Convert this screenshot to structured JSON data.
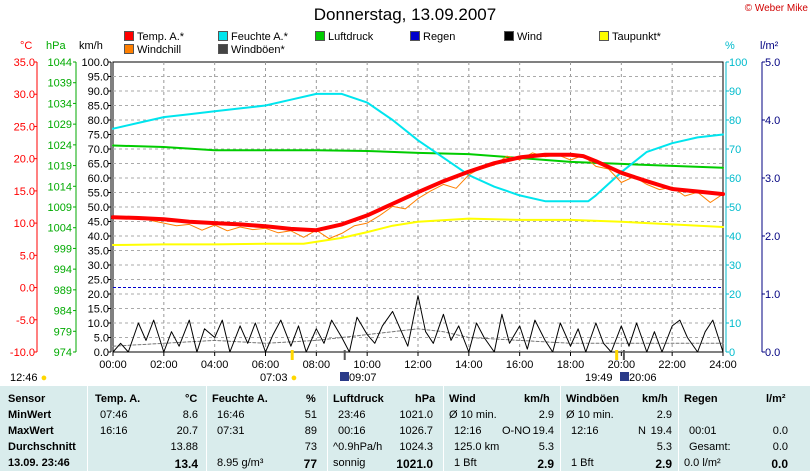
{
  "title": "Donnerstag, 13.09.2007",
  "copyright": "© Weber Mike",
  "legend": [
    {
      "label": "Temp. A.*",
      "color": "#ff0000"
    },
    {
      "label": "Feuchte A.*",
      "color": "#00e5ee"
    },
    {
      "label": "Luftdruck",
      "color": "#00cc00"
    },
    {
      "label": "Regen",
      "color": "#0000cc"
    },
    {
      "label": "Wind",
      "color": "#000000"
    },
    {
      "label": "Taupunkt*",
      "color": "#ffff00"
    },
    {
      "label": "Windchill",
      "color": "#ff7f00"
    },
    {
      "label": "Windböen*",
      "color": "#444444"
    }
  ],
  "axis_heads": {
    "temp": "°C",
    "press": "hPa",
    "wind": "km/h",
    "hum": "%",
    "rain": "l/m²"
  },
  "chart_data": {
    "type": "line",
    "x_ticks": [
      "00:00",
      "02:00",
      "04:00",
      "06:00",
      "08:00",
      "10:00",
      "12:00",
      "14:00",
      "16:00",
      "18:00",
      "20:00",
      "22:00",
      "24:00"
    ],
    "axes": {
      "temp": {
        "min": -10,
        "max": 35,
        "ticks": [
          "35.0",
          "30.0",
          "25.0",
          "20.0",
          "15.0",
          "10.0",
          "5.0",
          "0.0",
          "-5.0",
          "-10.0"
        ],
        "color": "#ff0000"
      },
      "press": {
        "min": 974,
        "max": 1048,
        "ticks": [
          "1044",
          "1039",
          "1034",
          "1029",
          "1024",
          "1019",
          "1014",
          "1009",
          "1004",
          "999",
          "994",
          "989",
          "984",
          "979",
          "974"
        ],
        "color": "#00aa00"
      },
      "wind": {
        "min": 0,
        "max": 100,
        "ticks": [
          "100.0",
          "95.0",
          "90.0",
          "85.0",
          "80.0",
          "75.0",
          "70.0",
          "65.0",
          "60.0",
          "55.0",
          "50.0",
          "45.0",
          "40.0",
          "35.0",
          "30.0",
          "25.0",
          "20.0",
          "15.0",
          "10.0",
          "5.0",
          "0.0"
        ],
        "color": "#000000"
      },
      "hum": {
        "min": 0,
        "max": 100,
        "ticks": [
          "100",
          "90",
          "80",
          "70",
          "60",
          "50",
          "40",
          "30",
          "20",
          "10",
          "0"
        ],
        "color": "#00bbcc"
      },
      "rain": {
        "min": 0,
        "max": 5,
        "ticks": [
          "5.0",
          "4.0",
          "3.0",
          "2.0",
          "1.0",
          "0.0"
        ],
        "color": "#000080"
      }
    },
    "series": [
      {
        "name": "Temp. A.*",
        "axis": "temp",
        "color": "#ff0000",
        "width": 4,
        "points": [
          [
            0,
            10.9
          ],
          [
            1,
            10.8
          ],
          [
            2,
            10.6
          ],
          [
            3,
            10.2
          ],
          [
            4,
            10.0
          ],
          [
            5,
            9.8
          ],
          [
            6,
            9.5
          ],
          [
            7,
            9.1
          ],
          [
            8,
            8.9
          ],
          [
            9,
            9.8
          ],
          [
            10,
            11.2
          ],
          [
            11,
            13.0
          ],
          [
            12,
            14.8
          ],
          [
            13,
            16.5
          ],
          [
            14,
            18.0
          ],
          [
            15,
            19.3
          ],
          [
            16,
            20.2
          ],
          [
            17,
            20.6
          ],
          [
            18,
            20.6
          ],
          [
            18.5,
            20.4
          ],
          [
            19,
            19.6
          ],
          [
            20,
            17.8
          ],
          [
            21,
            16.5
          ],
          [
            22,
            15.3
          ],
          [
            23,
            14.9
          ],
          [
            24,
            14.5
          ]
        ]
      },
      {
        "name": "Feuchte A.*",
        "axis": "hum",
        "color": "#00e5ee",
        "width": 2,
        "points": [
          [
            0,
            77
          ],
          [
            1,
            79
          ],
          [
            2,
            81
          ],
          [
            3,
            82
          ],
          [
            4,
            83
          ],
          [
            5,
            84
          ],
          [
            6,
            85
          ],
          [
            7,
            87
          ],
          [
            8,
            89
          ],
          [
            9,
            89
          ],
          [
            10,
            86
          ],
          [
            11,
            80
          ],
          [
            12,
            73
          ],
          [
            13,
            67
          ],
          [
            14,
            61
          ],
          [
            15,
            57
          ],
          [
            16,
            54
          ],
          [
            17,
            52
          ],
          [
            18,
            52
          ],
          [
            18.7,
            52
          ],
          [
            19,
            54
          ],
          [
            20,
            62
          ],
          [
            21,
            69
          ],
          [
            22,
            72
          ],
          [
            23,
            74
          ],
          [
            24,
            75
          ]
        ]
      },
      {
        "name": "Luftdruck",
        "axis": "press",
        "color": "#00cc00",
        "width": 2,
        "points": [
          [
            0,
            1026.7
          ],
          [
            2,
            1026.3
          ],
          [
            4,
            1025.5
          ],
          [
            6,
            1025.5
          ],
          [
            8,
            1025.5
          ],
          [
            10,
            1025.3
          ],
          [
            12,
            1024.8
          ],
          [
            14,
            1024.5
          ],
          [
            16,
            1023.5
          ],
          [
            18,
            1022.5
          ],
          [
            20,
            1022.0
          ],
          [
            22,
            1021.5
          ],
          [
            24,
            1021.0
          ]
        ]
      },
      {
        "name": "Taupunkt*",
        "axis": "temp",
        "color": "#ffff00",
        "width": 2,
        "points": [
          [
            0,
            6.6
          ],
          [
            2,
            6.7
          ],
          [
            4,
            6.7
          ],
          [
            6,
            6.8
          ],
          [
            7.5,
            6.8
          ],
          [
            9,
            7.7
          ],
          [
            10,
            8.6
          ],
          [
            11,
            9.6
          ],
          [
            12,
            10.2
          ],
          [
            14,
            10.7
          ],
          [
            16,
            10.5
          ],
          [
            18,
            10.5
          ],
          [
            20,
            10.2
          ],
          [
            22,
            9.8
          ],
          [
            24,
            9.4
          ]
        ]
      },
      {
        "name": "Windchill",
        "axis": "temp",
        "color": "#ff7f00",
        "width": 1,
        "points": [
          [
            0,
            10.8
          ],
          [
            0.5,
            10.9
          ],
          [
            1,
            10.8
          ],
          [
            1.5,
            10.4
          ],
          [
            2,
            10.0
          ],
          [
            2.5,
            9.6
          ],
          [
            3,
            9.8
          ],
          [
            3.5,
            8.9
          ],
          [
            4,
            9.7
          ],
          [
            4.5,
            8.8
          ],
          [
            5,
            9.4
          ],
          [
            5.5,
            9.0
          ],
          [
            6,
            9.2
          ],
          [
            6.5,
            8.5
          ],
          [
            7,
            8.8
          ],
          [
            7.5,
            7.8
          ],
          [
            8,
            8.9
          ],
          [
            8.5,
            7.6
          ],
          [
            9,
            8.4
          ],
          [
            9.5,
            9.6
          ],
          [
            10,
            10.0
          ],
          [
            10.5,
            11.2
          ],
          [
            11,
            12.6
          ],
          [
            11.5,
            12.2
          ],
          [
            12,
            13.8
          ],
          [
            12.5,
            15.0
          ],
          [
            13,
            16.0
          ],
          [
            13.5,
            15.4
          ],
          [
            14,
            17.5
          ],
          [
            14.5,
            18.6
          ],
          [
            15,
            19.0
          ],
          [
            15.5,
            20.4
          ],
          [
            16,
            19.8
          ],
          [
            16.5,
            20.9
          ],
          [
            17,
            20.3
          ],
          [
            17.5,
            20.6
          ],
          [
            18,
            19.8
          ],
          [
            18.5,
            20.5
          ],
          [
            19,
            18.8
          ],
          [
            19.5,
            18.4
          ],
          [
            20,
            16.3
          ],
          [
            20.5,
            17.2
          ],
          [
            21,
            16.0
          ],
          [
            21.5,
            15.2
          ],
          [
            22,
            15.6
          ],
          [
            22.5,
            14.2
          ],
          [
            23,
            14.8
          ],
          [
            23.5,
            13.2
          ],
          [
            24,
            14.5
          ]
        ]
      },
      {
        "name": "Wind",
        "axis": "wind",
        "color": "#000000",
        "width": 1,
        "points": [
          [
            0,
            0
          ],
          [
            0.3,
            3
          ],
          [
            0.6,
            0
          ],
          [
            1,
            10
          ],
          [
            1.3,
            4
          ],
          [
            1.6,
            11
          ],
          [
            2,
            0
          ],
          [
            2.3,
            7
          ],
          [
            2.6,
            2
          ],
          [
            3,
            11
          ],
          [
            3.3,
            0
          ],
          [
            3.6,
            8
          ],
          [
            4,
            5
          ],
          [
            4.3,
            11
          ],
          [
            4.6,
            0
          ],
          [
            5,
            9
          ],
          [
            5.3,
            3
          ],
          [
            5.6,
            10
          ],
          [
            6,
            0
          ],
          [
            6.3,
            6
          ],
          [
            6.6,
            11
          ],
          [
            7,
            2
          ],
          [
            7.3,
            9
          ],
          [
            7.6,
            0
          ],
          [
            8,
            8
          ],
          [
            8.3,
            3
          ],
          [
            8.6,
            11
          ],
          [
            9,
            5
          ],
          [
            9.3,
            0
          ],
          [
            9.6,
            12
          ],
          [
            10,
            6
          ],
          [
            10.3,
            3
          ],
          [
            10.6,
            9
          ],
          [
            11,
            14
          ],
          [
            11.3,
            8
          ],
          [
            11.6,
            2
          ],
          [
            12,
            19.4
          ],
          [
            12.3,
            7
          ],
          [
            12.6,
            3
          ],
          [
            13,
            13
          ],
          [
            13.3,
            4
          ],
          [
            13.6,
            9
          ],
          [
            14,
            0
          ],
          [
            14.3,
            10
          ],
          [
            14.6,
            5
          ],
          [
            15,
            0
          ],
          [
            15.3,
            13
          ],
          [
            15.6,
            3
          ],
          [
            16,
            9
          ],
          [
            16.3,
            1
          ],
          [
            16.6,
            11
          ],
          [
            17,
            4
          ],
          [
            17.3,
            0
          ],
          [
            17.6,
            10
          ],
          [
            18,
            2
          ],
          [
            18.3,
            8
          ],
          [
            18.6,
            0
          ],
          [
            19,
            10
          ],
          [
            19.3,
            3
          ],
          [
            19.6,
            0
          ],
          [
            20,
            9
          ],
          [
            20.3,
            2
          ],
          [
            20.6,
            10
          ],
          [
            21,
            0
          ],
          [
            21.3,
            7
          ],
          [
            21.6,
            0
          ],
          [
            22,
            9
          ],
          [
            22.3,
            11
          ],
          [
            22.6,
            5
          ],
          [
            23,
            0
          ],
          [
            23.3,
            7
          ],
          [
            23.6,
            11
          ],
          [
            24,
            0
          ]
        ]
      },
      {
        "name": "Windböen*",
        "axis": "wind",
        "color": "#777777",
        "width": 1,
        "dash": "3,2",
        "points": [
          [
            0,
            2
          ],
          [
            2,
            3
          ],
          [
            4,
            4
          ],
          [
            6,
            3
          ],
          [
            8,
            4
          ],
          [
            10,
            6
          ],
          [
            11,
            7
          ],
          [
            12,
            8
          ],
          [
            13,
            7
          ],
          [
            14,
            5
          ],
          [
            16,
            4
          ],
          [
            18,
            3
          ],
          [
            20,
            3
          ],
          [
            22,
            3
          ],
          [
            24,
            3
          ]
        ]
      }
    ],
    "markers": {
      "sunrise": "07:03",
      "sunset": "19:49",
      "moonrise": "09:07",
      "moonset": "20:06",
      "day_length_start": "12:46"
    }
  },
  "table": {
    "row_labels": [
      "Sensor",
      "MinWert",
      "MaxWert",
      "Durchschnitt",
      "13.09. 23:46"
    ],
    "temp": {
      "head": "Temp. A.",
      "unit": "°C",
      "min_time": "07:46",
      "min": "8.6",
      "max_time": "16:16",
      "max": "20.7",
      "avg": "13.88",
      "now": "13.4"
    },
    "hum": {
      "head": "Feuchte A.",
      "unit": "%",
      "min_time": "16:46",
      "min": "51",
      "max_time": "07:31",
      "max": "89",
      "avg": "73",
      "now_extra": "8.95 g/m³",
      "now": "77"
    },
    "press": {
      "head": "Luftdruck",
      "unit": "hPa",
      "min_time": "23:46",
      "min": "1021.0",
      "max_time": "00:16",
      "max": "1026.7",
      "avg_extra": "^0.9hPa/h",
      "avg": "1024.3",
      "now_extra": "sonnig",
      "now": "1021.0"
    },
    "wind": {
      "head": "Wind",
      "unit": "km/h",
      "r1_label": "Ø 10 min.",
      "r1": "2.9",
      "r2_time": "12:16",
      "r2_dir": "O-NO",
      "r2": "19.4",
      "r3_label": "125.0 km",
      "r3": "5.3",
      "r4_label": "1 Bft",
      "r4": "2.9"
    },
    "gust": {
      "head": "Windböen",
      "unit": "km/h",
      "r1_label": "Ø 10 min.",
      "r1": "2.9",
      "r2_time": "12:16",
      "r2_dir": "N",
      "r2": "19.4",
      "r3": "5.3",
      "r4_label": "1 Bft",
      "r4": "2.9"
    },
    "rain": {
      "head": "Regen",
      "unit": "l/m²",
      "r2_time": "00:01",
      "r2": "0.0",
      "r3_label": "Gesamt:",
      "r3": "0.0",
      "r4_label": "0.0 l/m²",
      "r4": "0.0"
    }
  }
}
